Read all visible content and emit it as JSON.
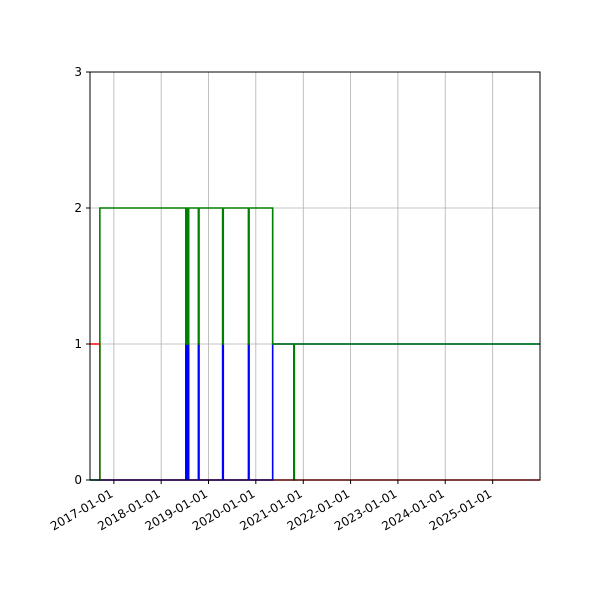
{
  "chart_data": {
    "type": "line",
    "step": true,
    "grid": true,
    "legend": "none",
    "title": "",
    "xlabel": "",
    "ylabel": "",
    "x_range": [
      "2016-07-01",
      "2026-01-01"
    ],
    "ylim": [
      0,
      3
    ],
    "x_ticks": [
      "2017-01-01",
      "2018-01-01",
      "2019-01-01",
      "2020-01-01",
      "2021-01-01",
      "2022-01-01",
      "2023-01-01",
      "2024-01-01",
      "2025-01-01"
    ],
    "y_ticks": [
      "0",
      "1",
      "2",
      "3"
    ],
    "series": [
      {
        "color": "#ff0000",
        "points": [
          [
            "2016-07-01",
            1
          ],
          [
            "2016-09-15",
            1
          ],
          [
            "2016-09-15",
            0
          ],
          [
            "2026-01-01",
            0
          ]
        ]
      },
      {
        "color": "#0000ff",
        "points": [
          [
            "2016-07-01",
            0
          ],
          [
            "2018-07-10",
            0
          ],
          [
            "2018-07-10",
            1
          ],
          [
            "2018-07-13",
            1
          ],
          [
            "2018-07-13",
            0
          ],
          [
            "2018-07-16",
            0
          ],
          [
            "2018-07-16",
            1
          ],
          [
            "2018-07-19",
            1
          ],
          [
            "2018-07-19",
            0
          ],
          [
            "2018-07-22",
            0
          ],
          [
            "2018-07-22",
            1
          ],
          [
            "2018-07-25",
            1
          ],
          [
            "2018-07-25",
            0
          ],
          [
            "2018-07-28",
            0
          ],
          [
            "2018-07-28",
            1
          ],
          [
            "2018-08-01",
            1
          ],
          [
            "2018-08-01",
            0
          ],
          [
            "2018-10-15",
            0
          ],
          [
            "2018-10-15",
            1
          ],
          [
            "2018-10-20",
            1
          ],
          [
            "2018-10-20",
            0
          ],
          [
            "2019-04-20",
            0
          ],
          [
            "2019-04-20",
            1
          ],
          [
            "2019-04-25",
            1
          ],
          [
            "2019-04-25",
            0
          ],
          [
            "2019-11-05",
            0
          ],
          [
            "2019-11-05",
            1
          ],
          [
            "2019-11-10",
            1
          ],
          [
            "2019-11-10",
            0
          ],
          [
            "2020-05-10",
            0
          ],
          [
            "2020-05-10",
            1
          ],
          [
            "2026-01-01",
            1
          ]
        ]
      },
      {
        "color": "#008000",
        "points": [
          [
            "2016-07-01",
            0
          ],
          [
            "2016-09-15",
            0
          ],
          [
            "2016-09-15",
            2
          ],
          [
            "2018-07-10",
            2
          ],
          [
            "2018-07-10",
            1
          ],
          [
            "2018-07-13",
            1
          ],
          [
            "2018-07-13",
            2
          ],
          [
            "2018-07-16",
            2
          ],
          [
            "2018-07-16",
            1
          ],
          [
            "2018-07-19",
            1
          ],
          [
            "2018-07-19",
            2
          ],
          [
            "2018-07-22",
            2
          ],
          [
            "2018-07-22",
            1
          ],
          [
            "2018-07-25",
            1
          ],
          [
            "2018-07-25",
            2
          ],
          [
            "2018-07-28",
            2
          ],
          [
            "2018-07-28",
            1
          ],
          [
            "2018-08-01",
            1
          ],
          [
            "2018-08-01",
            2
          ],
          [
            "2018-10-15",
            2
          ],
          [
            "2018-10-15",
            1
          ],
          [
            "2018-10-20",
            1
          ],
          [
            "2018-10-20",
            2
          ],
          [
            "2019-04-20",
            2
          ],
          [
            "2019-04-20",
            1
          ],
          [
            "2019-04-25",
            1
          ],
          [
            "2019-04-25",
            2
          ],
          [
            "2019-11-05",
            2
          ],
          [
            "2019-11-05",
            1
          ],
          [
            "2019-11-10",
            1
          ],
          [
            "2019-11-10",
            2
          ],
          [
            "2020-05-10",
            2
          ],
          [
            "2020-05-10",
            1
          ],
          [
            "2020-10-20",
            1
          ],
          [
            "2020-10-20",
            0
          ],
          [
            "2020-10-24",
            0
          ],
          [
            "2020-10-24",
            1
          ],
          [
            "2026-01-01",
            1
          ]
        ]
      }
    ]
  }
}
